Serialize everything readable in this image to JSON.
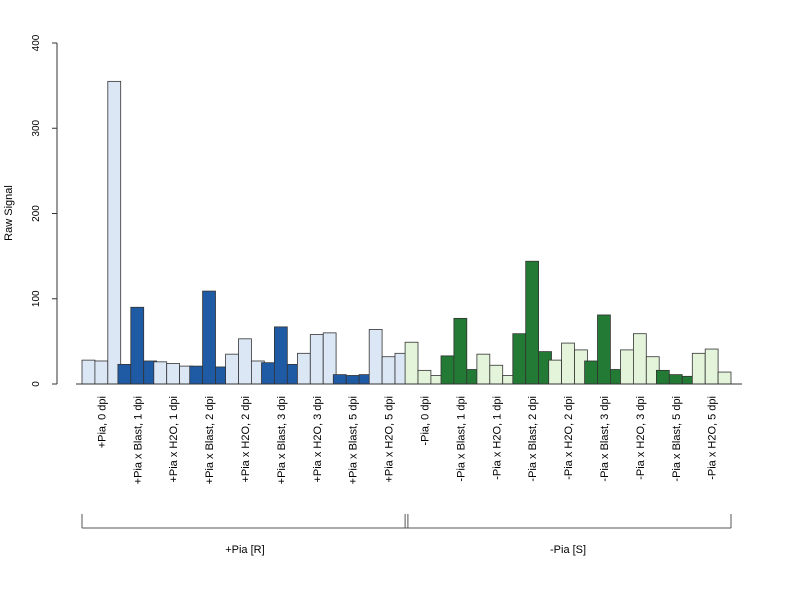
{
  "chart_data": {
    "type": "bar",
    "title": "",
    "xlabel": "",
    "ylabel": "Raw Signal",
    "ylim": [
      0,
      400
    ],
    "yticks": [
      0,
      100,
      200,
      300,
      400
    ],
    "grid": false,
    "legend": "none",
    "colors": {
      "light_blue": "#dbe7f5",
      "dark_blue": "#1f5ba5",
      "light_green": "#e3f4da",
      "dark_green": "#237a35",
      "outline": "#333333"
    },
    "categories": [
      {
        "label": "+Pia, 0 dpi",
        "color": "light_blue",
        "values": [
          28,
          27,
          355
        ]
      },
      {
        "label": "+Pia x Blast, 1 dpi",
        "color": "dark_blue",
        "values": [
          23,
          90,
          27
        ]
      },
      {
        "label": "+Pia x H2O, 1 dpi",
        "color": "light_blue",
        "values": [
          26,
          24,
          21
        ]
      },
      {
        "label": "+Pia x Blast, 2 dpi",
        "color": "dark_blue",
        "values": [
          21,
          109,
          20
        ]
      },
      {
        "label": "+Pia x H2O, 2 dpi",
        "color": "light_blue",
        "values": [
          35,
          53,
          27
        ]
      },
      {
        "label": "+Pia x Blast, 3 dpi",
        "color": "dark_blue",
        "values": [
          25,
          67,
          23
        ]
      },
      {
        "label": "+Pia x H2O, 3 dpi",
        "color": "light_blue",
        "values": [
          36,
          58,
          60
        ]
      },
      {
        "label": "+Pia x Blast, 5 dpi",
        "color": "dark_blue",
        "values": [
          11,
          10,
          11
        ]
      },
      {
        "label": "+Pia x H2O, 5 dpi",
        "color": "light_blue",
        "values": [
          64,
          32,
          36
        ]
      },
      {
        "label": "-Pia, 0 dpi",
        "color": "light_green",
        "values": [
          49,
          16,
          10
        ]
      },
      {
        "label": "-Pia x Blast, 1 dpi",
        "color": "dark_green",
        "values": [
          33,
          77,
          17
        ]
      },
      {
        "label": "-Pia x H2O, 1 dpi",
        "color": "light_green",
        "values": [
          35,
          22,
          10
        ]
      },
      {
        "label": "-Pia x Blast, 2 dpi",
        "color": "dark_green",
        "values": [
          59,
          144,
          38
        ]
      },
      {
        "label": "-Pia x H2O, 2 dpi",
        "color": "light_green",
        "values": [
          28,
          48,
          40
        ]
      },
      {
        "label": "-Pia x Blast, 3 dpi",
        "color": "dark_green",
        "values": [
          27,
          81,
          17
        ]
      },
      {
        "label": "-Pia x H2O, 3 dpi",
        "color": "light_green",
        "values": [
          40,
          59,
          32
        ]
      },
      {
        "label": "-Pia x Blast, 5 dpi",
        "color": "dark_green",
        "values": [
          16,
          11,
          9
        ]
      },
      {
        "label": "-Pia x H2O, 5 dpi",
        "color": "light_green",
        "values": [
          36,
          41,
          14
        ]
      }
    ],
    "groups": [
      {
        "label": "+Pia [R]",
        "first": 0,
        "last": 8
      },
      {
        "label": "-Pia [S]",
        "first": 9,
        "last": 17
      }
    ]
  }
}
